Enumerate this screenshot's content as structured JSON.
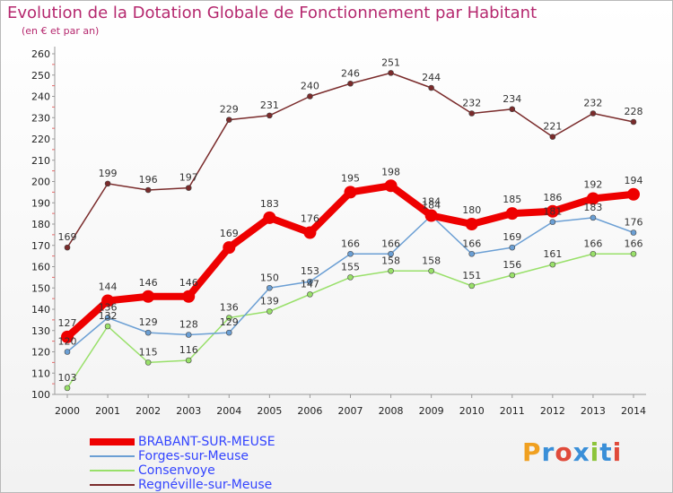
{
  "title": "Evolution de la Dotation Globale de Fonctionnement par Habitant",
  "subtitle": "(en € et par an)",
  "logo": "Proxiti",
  "chart_data": {
    "type": "line",
    "title": "Evolution de la Dotation Globale de Fonctionnement par Habitant",
    "subtitle": "(en € et par an)",
    "x": [
      2000,
      2001,
      2002,
      2003,
      2004,
      2005,
      2006,
      2007,
      2008,
      2009,
      2010,
      2011,
      2012,
      2013,
      2014
    ],
    "ylim": [
      100,
      260
    ],
    "y_ticks": [
      100,
      110,
      120,
      130,
      140,
      150,
      160,
      170,
      180,
      190,
      200,
      210,
      220,
      230,
      240,
      250,
      260
    ],
    "grid": false,
    "legend_position": "bottom-left",
    "series": [
      {
        "name": "Regnéville-sur-Meuse",
        "color": "#7a2b2b",
        "values": [
          169,
          199,
          196,
          197,
          229,
          231,
          240,
          246,
          251,
          244,
          232,
          234,
          221,
          232,
          228
        ]
      },
      {
        "name": "Consenvoye",
        "color": "#99e06a",
        "values": [
          103,
          132,
          115,
          116,
          136,
          139,
          147,
          155,
          158,
          158,
          151,
          156,
          161,
          166,
          166
        ]
      },
      {
        "name": "Forges-sur-Meuse",
        "color": "#6b9fd4",
        "values": [
          120,
          136,
          129,
          128,
          129,
          150,
          153,
          166,
          166,
          184,
          166,
          169,
          181,
          183,
          176
        ]
      },
      {
        "name": "BRABANT-SUR-MEUSE",
        "color": "#ee0000",
        "values": [
          127,
          144,
          146,
          146,
          169,
          183,
          176,
          195,
          198,
          184,
          180,
          185,
          186,
          192,
          194
        ]
      }
    ]
  },
  "legend": [
    {
      "label": "BRABANT-SUR-MEUSE",
      "color": "#ee0000",
      "text_color": "#3344ff",
      "thickness": 8
    },
    {
      "label": "Forges-sur-Meuse",
      "color": "#6b9fd4",
      "text_color": "#3344ff",
      "thickness": 2
    },
    {
      "label": "Consenvoye",
      "color": "#99e06a",
      "text_color": "#3344ff",
      "thickness": 2
    },
    {
      "label": "Regnéville-sur-Meuse",
      "color": "#7a2b2b",
      "text_color": "#3344ff",
      "thickness": 2
    }
  ]
}
